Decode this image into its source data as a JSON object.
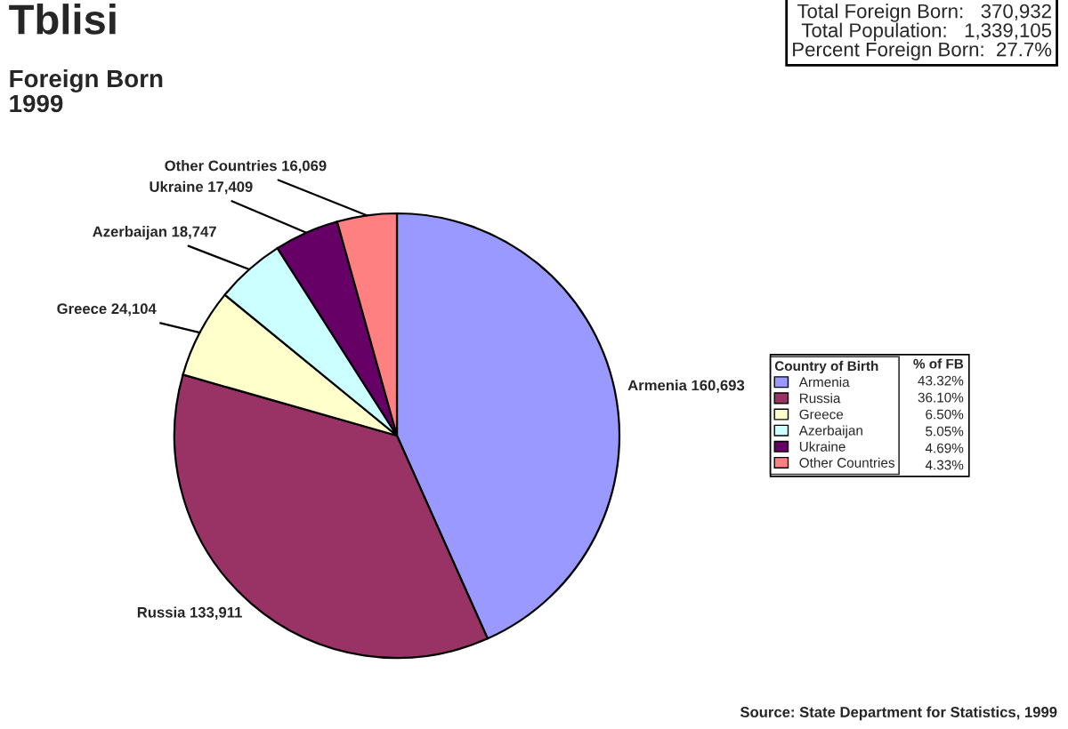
{
  "chart_data": {
    "type": "pie",
    "title": "Tblisi",
    "subtitle": "Foreign Born\n1999",
    "categories": [
      "Armenia",
      "Russia",
      "Greece",
      "Azerbaijan",
      "Ukraine",
      "Other Countries"
    ],
    "values": [
      160693,
      133911,
      24104,
      18747,
      17409,
      16069
    ],
    "value_labels": [
      "160,693",
      "133,911",
      "24,104",
      "18,747",
      "17,409",
      "16,069"
    ],
    "colors": [
      "#9999ff",
      "#993366",
      "#ffffcc",
      "#ccffff",
      "#660066",
      "#ff8080"
    ],
    "legend": "right",
    "legend_title": "Country of Birth",
    "annotations": [
      "Total Foreign Born:   370,932\nTotal Population:   1,339,105\nPercent Foreign Born:  27.7%",
      "% of FB",
      "43.32%",
      "36.10%",
      "6.50%",
      "5.05%",
      "4.69%",
      "4.33%",
      "Source: State Department for Statistics, 1999"
    ]
  }
}
